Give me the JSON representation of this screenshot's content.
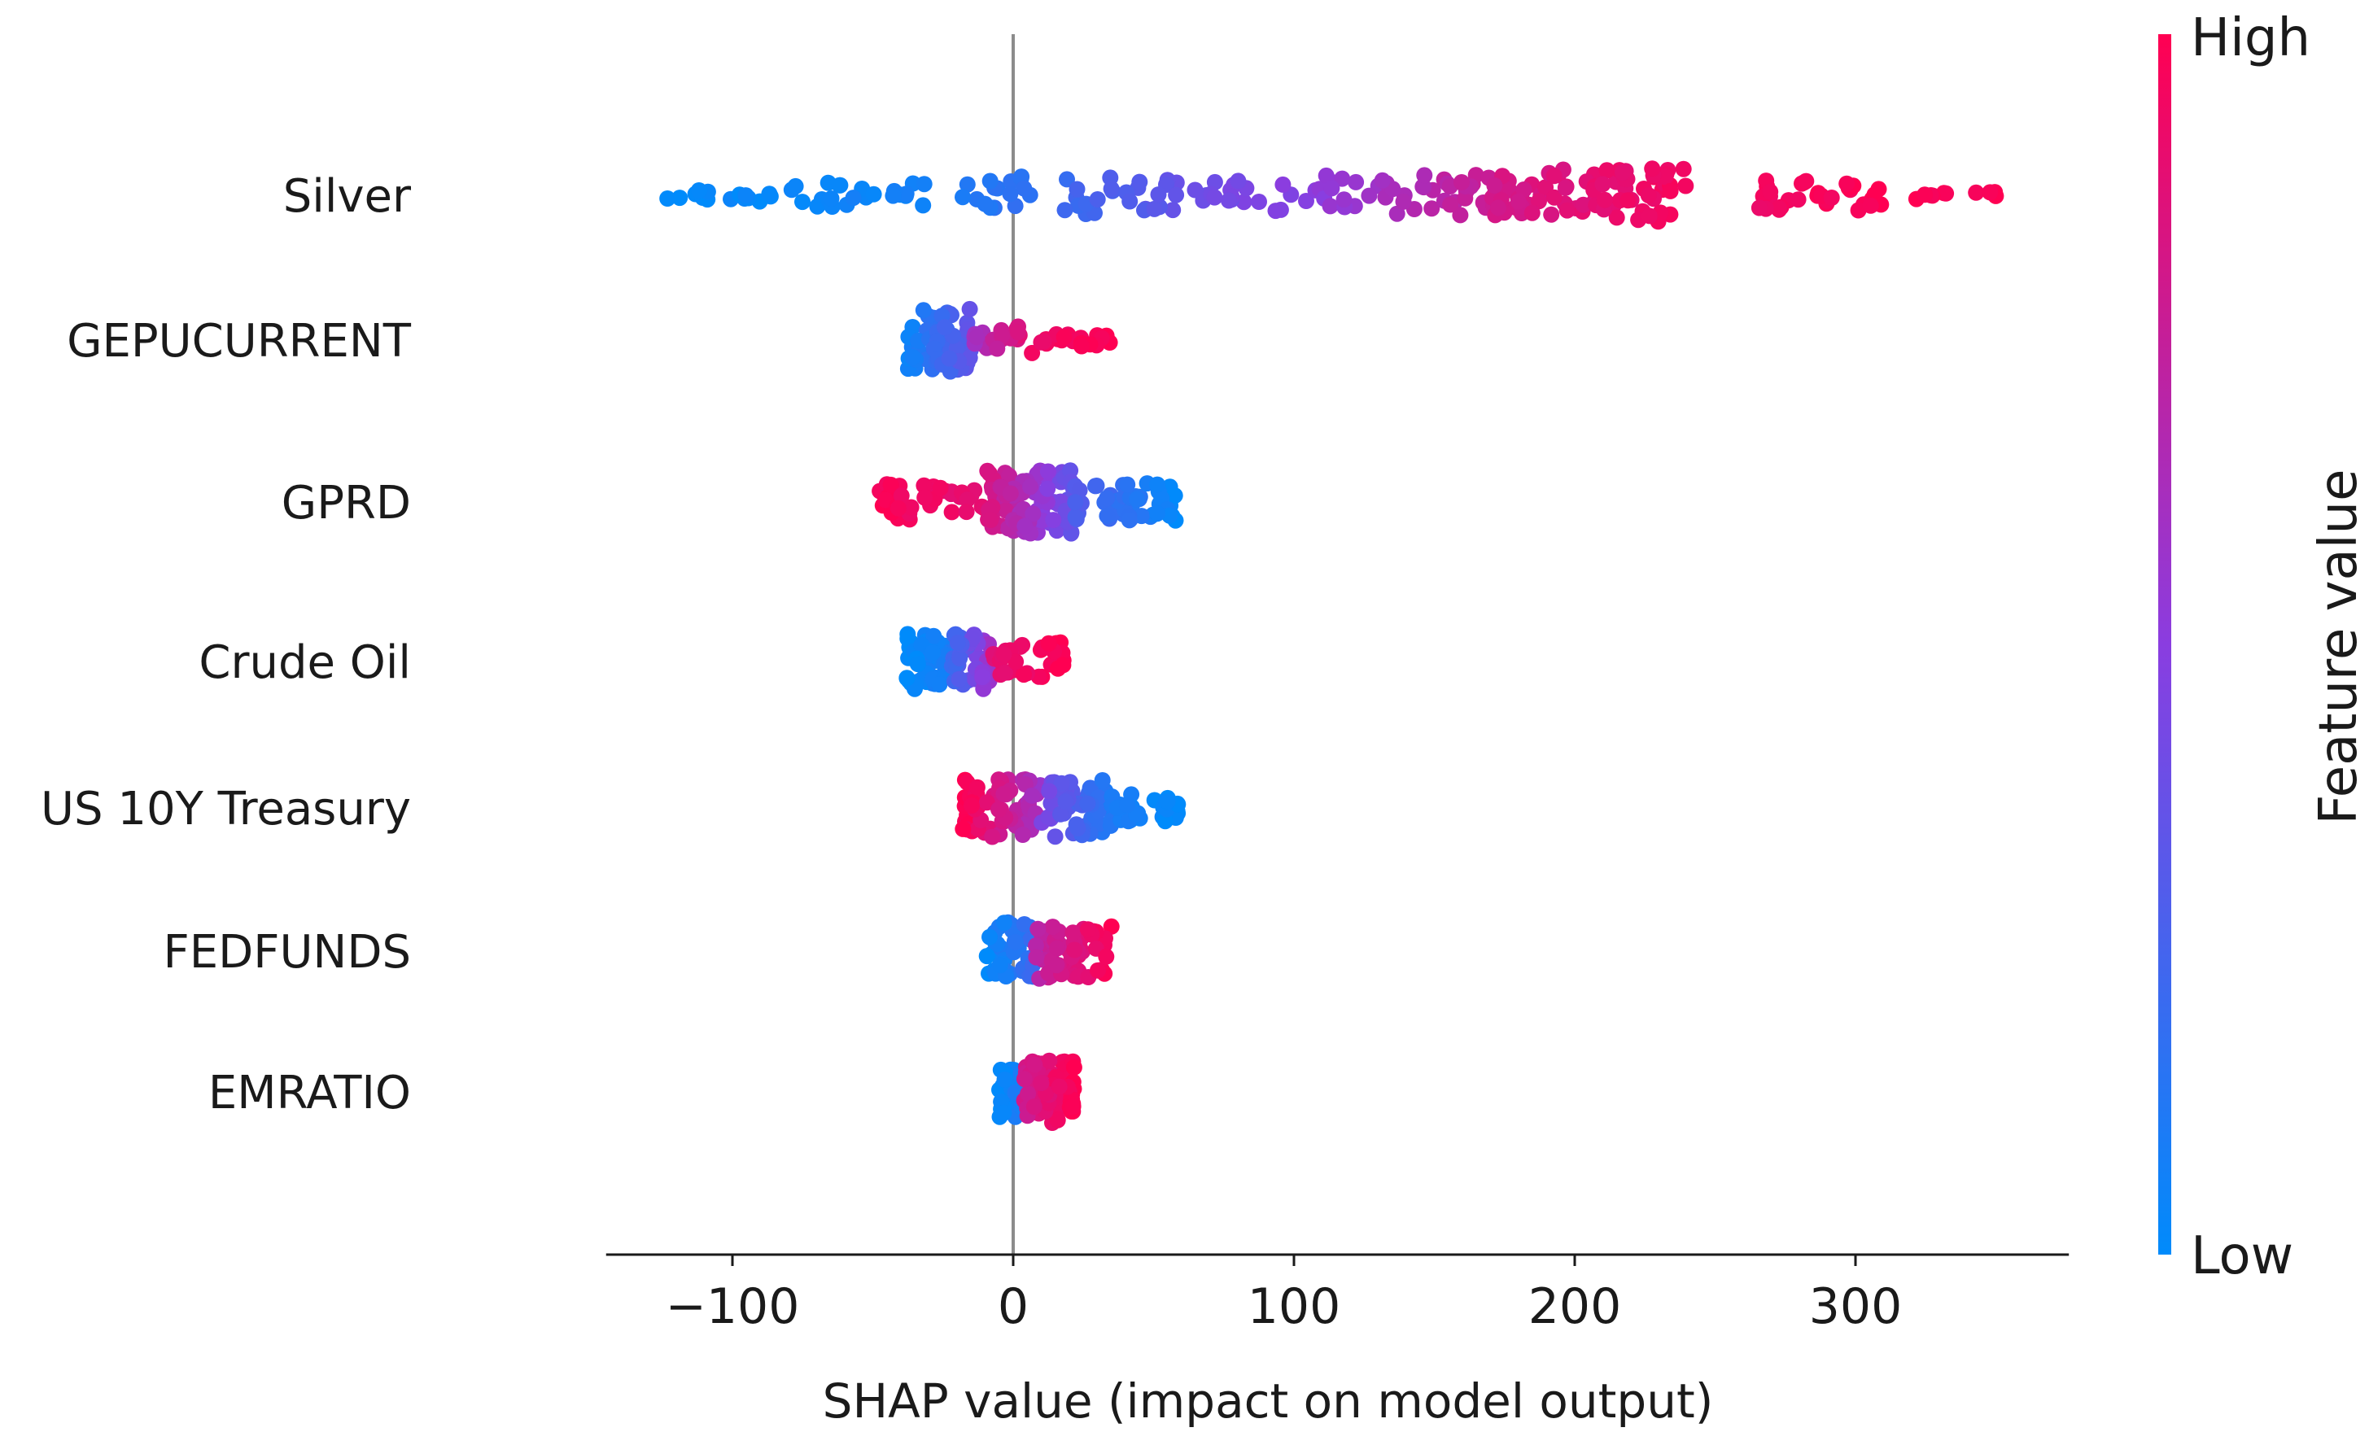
{
  "chart_data": {
    "type": "scatter",
    "subtype": "shap-beeswarm",
    "title": "",
    "xlabel": "SHAP value (impact on model output)",
    "xlim": [
      -145,
      376
    ],
    "xticks": [
      -100,
      0,
      100,
      200,
      300
    ],
    "xtick_labels": [
      "−100",
      "0",
      "100",
      "200",
      "300"
    ],
    "colorbar": {
      "title": "Feature value",
      "high_label": "High",
      "low_label": "Low",
      "high_color": "#ff0052",
      "mid_color": "#8a3de0",
      "low_color": "#008bfb"
    },
    "features": [
      {
        "name": "Silver",
        "clusters": [
          {
            "lo": -125,
            "hi": -80,
            "n": 16,
            "v0": 0.0,
            "v1": 0.03,
            "spread": 0.1
          },
          {
            "lo": -80,
            "hi": -30,
            "n": 24,
            "v0": 0.03,
            "v1": 0.07,
            "spread": 0.22
          },
          {
            "lo": -20,
            "hi": 40,
            "n": 28,
            "v0": 0.1,
            "v1": 0.28,
            "spread": 0.3
          },
          {
            "lo": 40,
            "hi": 110,
            "n": 36,
            "v0": 0.3,
            "v1": 0.52,
            "spread": 0.25
          },
          {
            "lo": 110,
            "hi": 170,
            "n": 42,
            "v0": 0.52,
            "v1": 0.78,
            "spread": 0.32
          },
          {
            "lo": 170,
            "hi": 240,
            "n": 90,
            "v0": 0.8,
            "v1": 0.96,
            "spread": 0.42
          },
          {
            "lo": 262,
            "hi": 312,
            "n": 34,
            "v0": 0.94,
            "v1": 1.0,
            "spread": 0.24
          },
          {
            "lo": 312,
            "hi": 352,
            "n": 10,
            "v0": 0.97,
            "v1": 1.0,
            "spread": 0.06
          }
        ]
      },
      {
        "name": "GEPUCURRENT",
        "clusters": [
          {
            "lo": -38,
            "hi": -15,
            "n": 60,
            "v0": 0.05,
            "v1": 0.35,
            "spread": 0.5
          },
          {
            "lo": -15,
            "hi": 8,
            "n": 24,
            "v0": 0.6,
            "v1": 0.95,
            "spread": 0.22
          },
          {
            "lo": 8,
            "hi": 35,
            "n": 22,
            "v0": 0.92,
            "v1": 1.0,
            "spread": 0.14
          }
        ]
      },
      {
        "name": "GPRD",
        "clusters": [
          {
            "lo": -48,
            "hi": -10,
            "n": 45,
            "v0": 0.98,
            "v1": 0.88,
            "spread": 0.28
          },
          {
            "lo": -10,
            "hi": 22,
            "n": 100,
            "v0": 0.85,
            "v1": 0.35,
            "spread": 0.5
          },
          {
            "lo": 22,
            "hi": 58,
            "n": 50,
            "v0": 0.3,
            "v1": 0.02,
            "spread": 0.3
          }
        ]
      },
      {
        "name": "Crude Oil",
        "clusters": [
          {
            "lo": -38,
            "hi": -22,
            "n": 55,
            "v0": 0.0,
            "v1": 0.1,
            "spread": 0.46
          },
          {
            "lo": -22,
            "hi": -8,
            "n": 45,
            "v0": 0.2,
            "v1": 0.6,
            "spread": 0.44
          },
          {
            "lo": -8,
            "hi": 18,
            "n": 35,
            "v0": 0.88,
            "v1": 1.0,
            "spread": 0.32
          }
        ]
      },
      {
        "name": "US 10Y Treasury",
        "clusters": [
          {
            "lo": -18,
            "hi": 10,
            "n": 70,
            "v0": 1.0,
            "v1": 0.6,
            "spread": 0.48
          },
          {
            "lo": 10,
            "hi": 35,
            "n": 55,
            "v0": 0.45,
            "v1": 0.1,
            "spread": 0.46
          },
          {
            "lo": 35,
            "hi": 60,
            "n": 30,
            "v0": 0.08,
            "v1": 0.0,
            "spread": 0.22
          }
        ]
      },
      {
        "name": "FEDFUNDS",
        "clusters": [
          {
            "lo": -10,
            "hi": 8,
            "n": 40,
            "v0": 0.02,
            "v1": 0.2,
            "spread": 0.46
          },
          {
            "lo": 8,
            "hi": 36,
            "n": 60,
            "v0": 0.7,
            "v1": 1.0,
            "spread": 0.44
          }
        ]
      },
      {
        "name": "EMRATIO",
        "clusters": [
          {
            "lo": -5,
            "hi": 3,
            "n": 30,
            "v0": 0.0,
            "v1": 0.1,
            "spread": 0.4
          },
          {
            "lo": 3,
            "hi": 22,
            "n": 80,
            "v0": 0.78,
            "v1": 1.0,
            "spread": 0.5
          }
        ]
      }
    ]
  }
}
